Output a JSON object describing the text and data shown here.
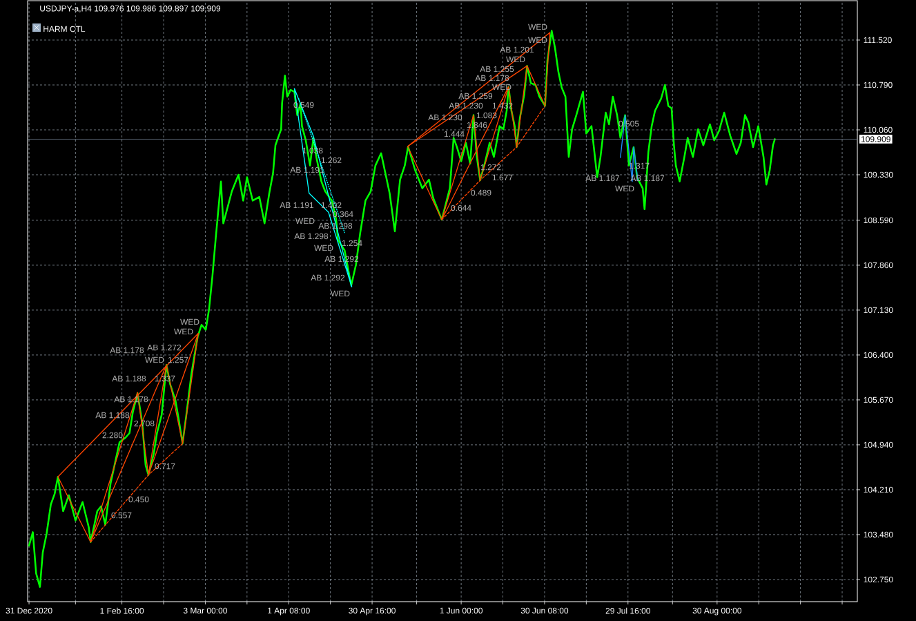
{
  "chart_data": {
    "type": "line",
    "title": "USDJPY-a,H4  109.976 109.986 109.897 109.909",
    "xlim": [
      "2020-12-30T12:00",
      "2021-10-18T08:00"
    ],
    "xticks": [
      {
        "value": "2020-12-31T00:00",
        "label": "31 Dec 2020"
      },
      {
        "value": "2021-01-16T08:00",
        "label": null
      },
      {
        "value": "2021-02-01T16:00",
        "label": "1 Feb 16:00"
      },
      {
        "value": "2021-02-16T08:00",
        "label": null
      },
      {
        "value": "2021-03-03T00:00",
        "label": "3 Mar 00:00"
      },
      {
        "value": "2021-03-17T16:00",
        "label": null
      },
      {
        "value": "2021-04-01T08:00",
        "label": "1 Apr 08:00"
      },
      {
        "value": "2021-04-16T00:00",
        "label": null
      },
      {
        "value": "2021-04-30T16:00",
        "label": "30 Apr 16:00"
      },
      {
        "value": "2021-05-16T08:00",
        "label": null
      },
      {
        "value": "2021-06-01T00:00",
        "label": "1 Jun 00:00"
      },
      {
        "value": "2021-06-15T16:00",
        "label": null
      },
      {
        "value": "2021-06-30T08:00",
        "label": "30 Jun 08:00"
      },
      {
        "value": "2021-07-15T00:00",
        "label": null
      },
      {
        "value": "2021-07-29T16:00",
        "label": "29 Jul 16:00"
      },
      {
        "value": "2021-08-14T08:00",
        "label": null
      },
      {
        "value": "2021-08-30T00:00",
        "label": "30 Aug 00:00"
      },
      {
        "value": "2021-09-13T16:00",
        "label": null
      },
      {
        "value": "2021-09-28T08:00",
        "label": null
      },
      {
        "value": "2021-10-13T00:00",
        "label": null
      }
    ],
    "ylim": [
      102.39,
      112.16
    ],
    "yticks": [
      {
        "value": 102.75,
        "label": "102.750"
      },
      {
        "value": 103.48,
        "label": "103.480"
      },
      {
        "value": 104.21,
        "label": "104.210"
      },
      {
        "value": 104.94,
        "label": "104.940"
      },
      {
        "value": 105.67,
        "label": "105.670"
      },
      {
        "value": 106.4,
        "label": "106.400"
      },
      {
        "value": 107.13,
        "label": "107.130"
      },
      {
        "value": 107.86,
        "label": "107.860"
      },
      {
        "value": 108.59,
        "label": "108.590"
      },
      {
        "value": 109.33,
        "label": "109.330"
      },
      {
        "value": 110.06,
        "label": "110.060"
      },
      {
        "value": 110.79,
        "label": "110.790"
      },
      {
        "value": 111.52,
        "label": "111.520"
      }
    ],
    "grid": true,
    "ref_lines": [
      {
        "axis": "y",
        "value": 109.909,
        "label": "109.909",
        "color": "#778899"
      }
    ],
    "series": [
      {
        "color": "#00ff00",
        "x": [
          "2020-12-31T00:00",
          "2021-01-01T08:00",
          "2021-01-02T12:00",
          "2021-01-03T20:00",
          "2021-01-04T20:00",
          "2021-01-06T04:00",
          "2021-01-07T16:00",
          "2021-01-09T00:00",
          "2021-01-10T04:00",
          "2021-01-12T00:00",
          "2021-01-14T00:00",
          "2021-01-16T08:00",
          "2021-01-18T20:00",
          "2021-01-21T00:00",
          "2021-01-21T16:00",
          "2021-01-24T00:00",
          "2021-01-25T08:00",
          "2021-01-26T20:00",
          "2021-01-28T16:00",
          "2021-01-31T04:00",
          "2021-01-31T20:00",
          "2021-02-03T00:00",
          "2021-02-04T08:00",
          "2021-02-05T12:00",
          "2021-02-07T04:00",
          "2021-02-08T20:00",
          "2021-02-10T00:00",
          "2021-02-11T00:00",
          "2021-02-12T20:00",
          "2021-02-14T00:00",
          "2021-02-15T16:00",
          "2021-02-17T08:00",
          "2021-02-18T16:00",
          "2021-02-20T12:00",
          "2021-02-21T16:00",
          "2021-02-23T00:00",
          "2021-02-24T08:00",
          "2021-02-26T04:00",
          "2021-02-28T08:00",
          "2021-03-01T16:00",
          "2021-03-03T04:00",
          "2021-03-04T08:00",
          "2021-03-05T12:00",
          "2021-03-06T16:00",
          "2021-03-08T12:00",
          "2021-03-09T08:00",
          "2021-03-12T08:00",
          "2021-03-14T16:00",
          "2021-03-16T08:00",
          "2021-03-17T16:00",
          "2021-03-19T16:00",
          "2021-03-22T00:00",
          "2021-03-23T20:00",
          "2021-03-25T12:00",
          "2021-03-26T20:00",
          "2021-03-27T16:00",
          "2021-03-29T16:00",
          "2021-03-30T00:00",
          "2021-03-31T00:00",
          "2021-03-31T20:00",
          "2021-04-02T00:00",
          "2021-04-03T08:00",
          "2021-04-04T08:00",
          "2021-04-05T12:00",
          "2021-04-06T00:00",
          "2021-04-07T08:00",
          "2021-04-08T20:00",
          "2021-04-10T00:00",
          "2021-04-11T04:00",
          "2021-04-12T20:00",
          "2021-04-14T04:00",
          "2021-04-16T12:00",
          "2021-04-18T00:00",
          "2021-04-18T16:00",
          "2021-04-21T00:00",
          "2021-04-23T08:00",
          "2021-04-25T00:00",
          "2021-04-26T12:00",
          "2021-04-28T08:00",
          "2021-04-30T04:00",
          "2021-05-01T20:00",
          "2021-05-03T20:00",
          "2021-05-06T20:00",
          "2021-05-08T16:00",
          "2021-05-10T12:00",
          "2021-05-12T04:00",
          "2021-05-13T08:00",
          "2021-05-15T20:00",
          "2021-05-18T08:00",
          "2021-05-20T16:00",
          "2021-05-22T04:00",
          "2021-05-25T04:00",
          "2021-05-28T00:00",
          "2021-05-29T08:00",
          "2021-05-30T12:00",
          "2021-06-01T00:00",
          "2021-06-02T16:00",
          "2021-06-04T04:00",
          "2021-06-05T08:00",
          "2021-06-06T12:00",
          "2021-06-07T16:00",
          "2021-06-09T12:00",
          "2021-06-11T00:00",
          "2021-06-12T12:00",
          "2021-06-14T12:00",
          "2021-06-15T20:00",
          "2021-06-17T00:00",
          "2021-06-17T16:00",
          "2021-06-18T16:00",
          "2021-06-19T20:00",
          "2021-06-20T12:00",
          "2021-06-21T16:00",
          "2021-06-23T04:00",
          "2021-06-24T04:00",
          "2021-06-25T12:00",
          "2021-06-27T04:00",
          "2021-06-28T12:00",
          "2021-06-30T12:00",
          "2021-07-01T08:00",
          "2021-07-02T20:00",
          "2021-07-04T00:00",
          "2021-07-05T04:00",
          "2021-07-06T08:00",
          "2021-07-07T16:00",
          "2021-07-08T20:00",
          "2021-07-10T00:00",
          "2021-07-11T12:00",
          "2021-07-13T20:00",
          "2021-07-15T00:00",
          "2021-07-16T20:00",
          "2021-07-18T20:00",
          "2021-07-20T00:00",
          "2021-07-21T20:00",
          "2021-07-23T00:00",
          "2021-07-24T08:00",
          "2021-07-25T20:00",
          "2021-07-27T00:00",
          "2021-07-28T16:00",
          "2021-07-30T00:00",
          "2021-07-31T16:00",
          "2021-08-01T20:00",
          "2021-08-03T20:00",
          "2021-08-04T12:00",
          "2021-08-05T20:00",
          "2021-08-07T00:00",
          "2021-08-08T04:00",
          "2021-08-10T08:00",
          "2021-08-11T16:00",
          "2021-08-12T20:00",
          "2021-08-14T00:00",
          "2021-08-14T20:00",
          "2021-08-15T12:00",
          "2021-08-16T20:00",
          "2021-08-18T12:00",
          "2021-08-19T16:00",
          "2021-08-21T12:00",
          "2021-08-23T08:00",
          "2021-08-25T04:00",
          "2021-08-27T12:00",
          "2021-08-29T00:00",
          "2021-08-30T16:00",
          "2021-09-01T12:00",
          "2021-09-03T16:00",
          "2021-09-05T20:00",
          "2021-09-07T08:00",
          "2021-09-08T20:00",
          "2021-09-10T00:00",
          "2021-09-11T16:00",
          "2021-09-13T12:00",
          "2021-09-15T08:00",
          "2021-09-16T08:00",
          "2021-09-17T12:00",
          "2021-09-18T16:00",
          "2021-09-19T08:00"
        ],
        "values": [
          103.3,
          103.52,
          102.85,
          102.63,
          103.19,
          103.49,
          103.97,
          104.14,
          104.42,
          103.86,
          104.12,
          103.71,
          104.01,
          103.6,
          103.36,
          103.86,
          103.94,
          103.64,
          104.31,
          104.84,
          104.98,
          105.06,
          105.13,
          105.47,
          105.78,
          105.29,
          104.61,
          104.45,
          104.79,
          105.13,
          105.43,
          106.24,
          105.92,
          105.66,
          105.35,
          104.96,
          105.43,
          106.11,
          106.7,
          106.89,
          106.81,
          107.15,
          107.68,
          108.3,
          109.22,
          108.54,
          109.06,
          109.33,
          108.91,
          109.29,
          108.91,
          108.97,
          108.54,
          109.03,
          109.36,
          109.81,
          110.07,
          110.49,
          110.94,
          110.6,
          110.71,
          110.68,
          110.3,
          110.49,
          110.12,
          109.89,
          109.48,
          109.93,
          109.59,
          109.22,
          109.06,
          108.91,
          108.61,
          108.27,
          108.1,
          107.53,
          107.87,
          108.39,
          108.91,
          109.06,
          109.48,
          109.68,
          109.03,
          108.41,
          109.25,
          109.48,
          109.79,
          109.4,
          109.11,
          109.25,
          108.95,
          108.6,
          109.11,
          109.93,
          109.78,
          109.55,
          109.85,
          109.51,
          110.3,
          109.62,
          109.24,
          109.55,
          109.85,
          109.62,
          110.12,
          110.07,
          110.37,
          110.76,
          110.37,
          110.12,
          109.78,
          110.26,
          110.63,
          111.1,
          110.82,
          110.79,
          110.6,
          110.45,
          111.19,
          111.67,
          111.39,
          111.01,
          110.75,
          110.6,
          109.62,
          110.07,
          110.3,
          110.68,
          110.0,
          110.12,
          109.29,
          109.62,
          110.34,
          110.15,
          110.6,
          110.3,
          109.93,
          110.3,
          109.48,
          109.78,
          109.29,
          109.11,
          108.77,
          109.7,
          110.12,
          110.37,
          110.57,
          110.79,
          110.45,
          110.41,
          109.81,
          109.48,
          109.22,
          109.62,
          109.93,
          109.62,
          110.07,
          109.81,
          110.15,
          109.89,
          110.04,
          110.34,
          109.96,
          109.67,
          109.85,
          110.3,
          110.18,
          109.78,
          110.12,
          109.62,
          109.17,
          109.4,
          109.81,
          109.91
        ]
      },
      {
        "color": "#ff4500",
        "x": [
          "2021-01-10T04:00",
          "2021-01-21T16:00",
          "2021-02-07T04:00",
          "2021-02-11T00:00",
          "2021-02-17T08:00",
          "2021-02-23T00:00",
          "2021-02-28T12:00"
        ],
        "values": [
          104.42,
          103.36,
          105.79,
          104.45,
          106.24,
          104.96,
          106.75
        ]
      },
      {
        "color": "#ff4500",
        "x": [
          "2021-01-10T04:00",
          "2021-02-28T12:00"
        ],
        "values": [
          104.42,
          106.75
        ]
      },
      {
        "color": "#ff4500",
        "x": [
          "2021-01-21T16:00",
          "2021-02-17T08:00"
        ],
        "values": [
          103.36,
          106.24
        ]
      },
      {
        "color": "#ff4500",
        "x": [
          "2021-02-11T00:00",
          "2021-02-28T12:00"
        ],
        "values": [
          104.45,
          106.75
        ]
      },
      {
        "color": "#ff4500",
        "x": [
          "2021-01-21T16:00",
          "2021-02-11T00:00",
          "2021-02-23T00:00"
        ],
        "values": [
          103.36,
          104.45,
          104.96
        ],
        "line_style": "dashed"
      },
      {
        "color": "#00ffff",
        "x": [
          "2021-04-03T08:00",
          "2021-04-08T12:00",
          "2021-04-15T08:00",
          "2021-04-23T12:00"
        ],
        "values": [
          110.73,
          109.03,
          108.72,
          107.51
        ]
      },
      {
        "color": "#00ffff",
        "x": [
          "2021-04-03T08:00",
          "2021-04-10T00:00",
          "2021-04-23T12:00"
        ],
        "values": [
          110.73,
          109.96,
          107.51
        ]
      },
      {
        "color": "#00ffff",
        "x": [
          "2021-04-04T20:00",
          "2021-04-21T00:00"
        ],
        "values": [
          110.57,
          108.39
        ],
        "line_style": "dotted"
      },
      {
        "color": "#ff4500",
        "x": [
          "2021-05-13T04:00",
          "2021-05-25T04:00",
          "2021-06-05T08:00",
          "2021-06-07T16:00",
          "2021-06-17T16:00",
          "2021-06-20T12:00",
          "2021-06-24T04:00",
          "2021-06-30T12:00",
          "2021-07-02T04:00"
        ],
        "values": [
          109.79,
          108.6,
          110.3,
          109.24,
          110.76,
          109.78,
          111.1,
          110.45,
          111.64
        ]
      },
      {
        "color": "#ff4500",
        "x": [
          "2021-05-13T04:00",
          "2021-06-24T04:00"
        ],
        "values": [
          109.79,
          111.1
        ]
      },
      {
        "color": "#ff4500",
        "x": [
          "2021-05-13T04:00",
          "2021-07-02T04:00"
        ],
        "values": [
          109.79,
          111.64
        ]
      },
      {
        "color": "#ff4500",
        "x": [
          "2021-05-25T04:00",
          "2021-06-17T16:00"
        ],
        "values": [
          108.6,
          110.76
        ]
      },
      {
        "color": "#ff4500",
        "x": [
          "2021-05-25T04:00",
          "2021-06-07T16:00",
          "2021-06-20T12:00",
          "2021-06-30T12:00"
        ],
        "values": [
          108.6,
          109.24,
          109.78,
          110.45
        ],
        "line_style": "dashed"
      },
      {
        "color": "#1e90ff",
        "x": [
          "2021-07-27T00:00",
          "2021-07-28T16:00",
          "2021-07-31T04:00",
          "2021-07-31T16:00",
          "2021-08-02T04:00"
        ],
        "values": [
          109.61,
          110.3,
          109.22,
          109.78,
          109.23
        ]
      }
    ],
    "annotations": [
      "HARM CTL",
      "WED",
      "WED",
      "AB 1.178",
      "AB 1.272",
      "WED",
      "1.257",
      "AB 1.188",
      "1.337",
      "AB 1.178",
      "AB 1.188",
      "2.708",
      "2.280",
      "0.717",
      "0.450",
      "0.557",
      "0.549",
      "1.038",
      "1.262",
      "AB 1.191",
      "AB 1.191",
      "1.402",
      "0.364",
      "WED",
      "AB 1.298",
      "AB 1.298",
      "1.254",
      "WED",
      "AB 1.292",
      "AB 1.292",
      "WED",
      "WED",
      "WED",
      "AB 1.201",
      "WED",
      "AB 1.255",
      "AB 1.178",
      "WED",
      "AB 1.259",
      "AB 1.230",
      "1.432",
      "1.083",
      "AB 1.230",
      "1.846",
      "1.444",
      "1.272",
      "1.677",
      "0.489",
      "0.644",
      "0.505",
      "1.317",
      "AB 1.187",
      "AB 1.187",
      "WED"
    ]
  }
}
